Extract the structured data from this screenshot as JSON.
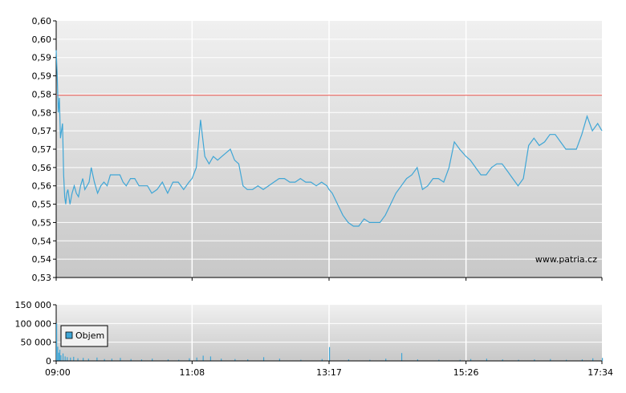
{
  "watermark": "www.patria.cz",
  "chart_data": [
    {
      "type": "line",
      "xlabel": "",
      "ylabel": "",
      "y_ticks": [
        "0,60",
        "0,60",
        "0,59",
        "0,59",
        "0,58",
        "0,58",
        "0,57",
        "0,57",
        "0,56",
        "0,56",
        "0,55",
        "0,55",
        "0,54",
        "0,54",
        "0,53"
      ],
      "ylim": [
        0.53,
        0.6
      ],
      "x_ticks": [
        "09:00",
        "11:08",
        "13:17",
        "15:26",
        "17:34"
      ],
      "xlim": [
        "09:00",
        "17:34"
      ],
      "grid": true,
      "reference_line": {
        "value": 0.5797,
        "color": "#e8504a"
      },
      "series": [
        {
          "color": "#3fa6d6",
          "x": [
            "09:00",
            "09:01",
            "09:02",
            "09:03",
            "09:04",
            "09:05",
            "09:06",
            "09:07",
            "09:08",
            "09:09",
            "09:10",
            "09:11",
            "09:13",
            "09:15",
            "09:17",
            "09:19",
            "09:21",
            "09:23",
            "09:25",
            "09:27",
            "09:29",
            "09:31",
            "09:33",
            "09:36",
            "09:39",
            "09:42",
            "09:45",
            "09:48",
            "09:51",
            "09:54",
            "09:57",
            "10:00",
            "10:03",
            "10:06",
            "10:10",
            "10:14",
            "10:18",
            "10:22",
            "10:26",
            "10:30",
            "10:35",
            "10:40",
            "10:45",
            "10:50",
            "10:55",
            "11:00",
            "11:05",
            "11:08",
            "11:12",
            "11:16",
            "11:20",
            "11:24",
            "11:28",
            "11:32",
            "11:36",
            "11:40",
            "11:44",
            "11:48",
            "11:52",
            "11:56",
            "12:00",
            "12:05",
            "12:10",
            "12:15",
            "12:20",
            "12:25",
            "12:30",
            "12:35",
            "12:40",
            "12:45",
            "12:50",
            "12:55",
            "13:00",
            "13:05",
            "13:10",
            "13:15",
            "13:17",
            "13:20",
            "13:25",
            "13:30",
            "13:35",
            "13:40",
            "13:45",
            "13:50",
            "13:55",
            "14:00",
            "14:05",
            "14:10",
            "14:15",
            "14:20",
            "14:25",
            "14:30",
            "14:35",
            "14:40",
            "14:45",
            "14:50",
            "14:55",
            "15:00",
            "15:05",
            "15:10",
            "15:15",
            "15:20",
            "15:26",
            "15:30",
            "15:35",
            "15:40",
            "15:45",
            "15:50",
            "15:55",
            "16:00",
            "16:05",
            "16:10",
            "16:15",
            "16:20",
            "16:25",
            "16:30",
            "16:35",
            "16:40",
            "16:45",
            "16:50",
            "16:55",
            "17:00",
            "17:05",
            "17:10",
            "17:15",
            "17:20",
            "17:25",
            "17:30",
            "17:34"
          ],
          "values": [
            0.592,
            0.585,
            0.575,
            0.579,
            0.568,
            0.57,
            0.572,
            0.558,
            0.552,
            0.55,
            0.553,
            0.554,
            0.55,
            0.553,
            0.555,
            0.553,
            0.552,
            0.555,
            0.557,
            0.554,
            0.555,
            0.556,
            0.56,
            0.556,
            0.553,
            0.555,
            0.556,
            0.555,
            0.558,
            0.558,
            0.558,
            0.558,
            0.556,
            0.555,
            0.557,
            0.557,
            0.555,
            0.555,
            0.555,
            0.553,
            0.554,
            0.556,
            0.553,
            0.556,
            0.556,
            0.554,
            0.556,
            0.557,
            0.56,
            0.573,
            0.563,
            0.561,
            0.563,
            0.562,
            0.563,
            0.564,
            0.565,
            0.562,
            0.561,
            0.555,
            0.554,
            0.554,
            0.555,
            0.554,
            0.555,
            0.556,
            0.557,
            0.557,
            0.556,
            0.556,
            0.557,
            0.556,
            0.556,
            0.555,
            0.556,
            0.555,
            0.554,
            0.553,
            0.55,
            0.547,
            0.545,
            0.544,
            0.544,
            0.546,
            0.545,
            0.545,
            0.545,
            0.547,
            0.55,
            0.553,
            0.555,
            0.557,
            0.558,
            0.56,
            0.554,
            0.555,
            0.557,
            0.557,
            0.556,
            0.56,
            0.567,
            0.565,
            0.563,
            0.562,
            0.56,
            0.558,
            0.558,
            0.56,
            0.561,
            0.561,
            0.559,
            0.557,
            0.555,
            0.557,
            0.566,
            0.568,
            0.566,
            0.567,
            0.569,
            0.569,
            0.567,
            0.565,
            0.565,
            0.565,
            0.569,
            0.574,
            0.57,
            0.572,
            0.57
          ]
        }
      ]
    },
    {
      "type": "bar",
      "xlabel": "",
      "ylabel": "",
      "y_ticks": [
        "150 000",
        "100 000",
        "50 000",
        "0"
      ],
      "ylim": [
        0,
        150000
      ],
      "x_ticks": [
        "09:00",
        "11:08",
        "13:17",
        "15:26",
        "17:34"
      ],
      "grid": true,
      "legend": "top-left",
      "series": [
        {
          "name": "Objem",
          "color": "#3fa6d6",
          "x": [
            "09:00",
            "09:01",
            "09:02",
            "09:03",
            "09:04",
            "09:06",
            "09:08",
            "09:10",
            "09:13",
            "09:16",
            "09:20",
            "09:25",
            "09:30",
            "09:38",
            "09:45",
            "09:52",
            "10:00",
            "10:10",
            "10:20",
            "10:30",
            "10:45",
            "10:55",
            "11:05",
            "11:12",
            "11:18",
            "11:25",
            "11:35",
            "11:48",
            "12:00",
            "12:15",
            "12:30",
            "12:50",
            "13:10",
            "13:17",
            "13:35",
            "13:55",
            "14:10",
            "14:25",
            "14:40",
            "15:00",
            "15:20",
            "15:30",
            "15:45",
            "16:00",
            "16:15",
            "16:30",
            "16:45",
            "17:00",
            "17:15",
            "17:25",
            "17:34"
          ],
          "values": [
            100000,
            38000,
            22000,
            30000,
            15000,
            20000,
            12000,
            10000,
            9000,
            11000,
            7000,
            8000,
            6000,
            9000,
            5000,
            6000,
            8000,
            5000,
            4000,
            6000,
            4000,
            3000,
            7000,
            9000,
            14000,
            12000,
            6000,
            5000,
            4000,
            10000,
            6000,
            3000,
            5000,
            37000,
            4000,
            3000,
            6000,
            21000,
            4000,
            3000,
            3000,
            5000,
            6000,
            4000,
            3000,
            4000,
            5000,
            3000,
            4000,
            7000,
            8000
          ]
        }
      ]
    }
  ]
}
